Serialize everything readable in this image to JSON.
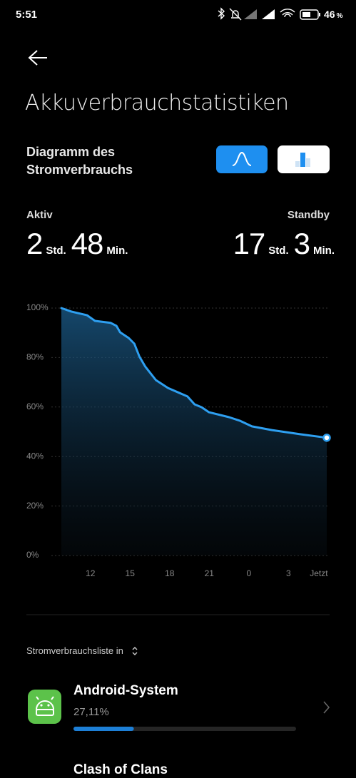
{
  "status_bar": {
    "time": "5:51",
    "battery_level": "46",
    "battery_unit": "%"
  },
  "header": {
    "title": "Akkuverbrauchstatistiken"
  },
  "chart_section": {
    "title": "Diagramm des Stromverbrauchs"
  },
  "summary": {
    "active_label": "Aktiv",
    "active_hours": "2",
    "active_hours_unit": "Std.",
    "active_minutes": "48",
    "active_minutes_unit": "Min.",
    "standby_label": "Standby",
    "standby_hours": "17",
    "standby_hours_unit": "Std.",
    "standby_minutes": "3",
    "standby_minutes_unit": "Min."
  },
  "chart_data": {
    "type": "line",
    "x": [
      9.8,
      10.56,
      11.75,
      12.35,
      13.54,
      13.97,
      14.25,
      14.9,
      15.33,
      15.71,
      16.15,
      16.96,
      17.88,
      19.35,
      19.89,
      20.43,
      20.98,
      22.5,
      23.31,
      24.23,
      25.75,
      27.92,
      29.9
    ],
    "values": [
      100,
      98.6,
      97.1,
      94.8,
      94,
      92.8,
      90.2,
      87.9,
      85.6,
      80.4,
      76.4,
      70.9,
      67.7,
      64.3,
      61.1,
      59.9,
      57.9,
      55.9,
      54.5,
      52.2,
      50.7,
      49,
      47.6
    ],
    "color": "#2e9ff0",
    "xlim": [
      9.8,
      29.9
    ],
    "xticks": [
      12,
      15,
      18,
      21,
      {
        "value": 24,
        "label": "0"
      },
      {
        "value": 27,
        "label": "3"
      },
      {
        "value": 29.3,
        "label": "Jetzt"
      }
    ],
    "ylim": [
      0,
      100
    ],
    "yticks": [
      {
        "value": 0,
        "label": "0%"
      },
      {
        "value": 20,
        "label": "20%"
      },
      {
        "value": 40,
        "label": "40%"
      },
      {
        "value": 60,
        "label": "60%"
      },
      {
        "value": 80,
        "label": "80%"
      },
      {
        "value": 100,
        "label": "100%"
      }
    ],
    "grid": true
  },
  "list": {
    "heading": "Stromverbrauchsliste in",
    "apps": [
      {
        "name": "Android-System",
        "percent_label": "27,11%",
        "percent": 27.11
      },
      {
        "name": "Clash of Clans"
      }
    ]
  }
}
